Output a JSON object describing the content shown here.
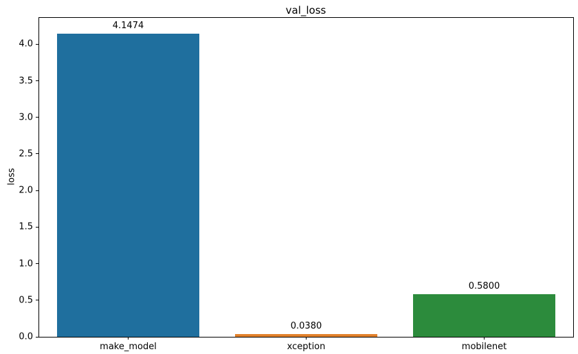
{
  "chart_data": {
    "type": "bar",
    "title": "val_loss",
    "xlabel": "",
    "ylabel": "loss",
    "categories": [
      "make_model",
      "xception",
      "mobilenet"
    ],
    "values": [
      4.1474,
      0.038,
      0.58
    ],
    "value_labels": [
      "4.1474",
      "0.0380",
      "0.5800"
    ],
    "bar_colors": [
      "#1f6f9e",
      "#e1812c",
      "#2c8b3c"
    ],
    "ylim": [
      0,
      4.36
    ],
    "ytick_values": [
      0,
      0.5,
      1.0,
      1.5,
      2.0,
      2.5,
      3.0,
      3.5,
      4.0
    ],
    "ytick_labels": [
      "0.0",
      "0.5",
      "1.0",
      "1.5",
      "2.0",
      "2.5",
      "3.0",
      "3.5",
      "4.0"
    ],
    "bar_width_fraction": 0.8,
    "grid": false,
    "legend": "none",
    "background_color": "#ffffff",
    "text_color": "#000000"
  }
}
